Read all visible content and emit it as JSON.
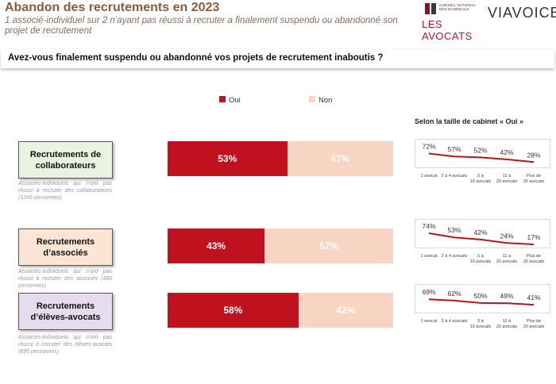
{
  "header": {
    "title": "Abandon des recrutements en 2023",
    "subtitle": "1 associé-individuel sur 2 n’ayant pas réussi à recruter a finalement suspendu ou abandonné son projet de recrutement",
    "logo_cnb_small": "CONSEIL NATIONAL DES BARREAUX",
    "logo_cnb_big": "LES AVOCATS",
    "logo_viavoice": "VIAVOICE"
  },
  "question": "Avez-vous finalement suspendu ou abandonné vos projets de recrutement inaboutis ?",
  "legend": {
    "oui": "Oui",
    "non": "Non"
  },
  "cabinet_title": "Selon la taille de cabinet « Oui »",
  "colors": {
    "oui": "#c0111f",
    "non": "#f8d5c2",
    "trend_line": "#c0111f"
  },
  "rows": [
    {
      "label": "Recrutements de collaborateurs",
      "note": "Associés-individuels qui n’ont pas réussi à recruter des collaborateurs (1245 personnes)",
      "box_color": "#eaf3e0",
      "oui_label": "53%",
      "non_label": "47%",
      "trend_labels": [
        "72%",
        "57%",
        "52%",
        "42%",
        "28%"
      ]
    },
    {
      "label": "Recrutements d’associés",
      "note": "Associés-individuels qui n’ont pas réussi à recruter des associés (480 personnes)",
      "box_color": "#fce5d4",
      "oui_label": "43%",
      "non_label": "57%",
      "trend_labels": [
        "74%",
        "53%",
        "42%",
        "24%",
        "17%"
      ]
    },
    {
      "label": "Recrutements d’élèves-avocats",
      "note": "Associés-individuels qui n’ont pas réussi à recruter des élèves-avocats (895 personnes)",
      "box_color": "#e6dcf0",
      "oui_label": "58%",
      "non_label": "42%",
      "trend_labels": [
        "69%",
        "62%",
        "50%",
        "49%",
        "41%"
      ]
    }
  ],
  "chart_data": [
    {
      "type": "bar",
      "categories": [
        "Recrutements de collaborateurs",
        "Recrutements d’associés",
        "Recrutements d’élèves-avocats"
      ],
      "series": [
        {
          "name": "Oui",
          "values": [
            53,
            43,
            58
          ]
        },
        {
          "name": "Non",
          "values": [
            47,
            57,
            42
          ]
        }
      ],
      "stacked": true,
      "orientation": "horizontal",
      "legend": "top"
    },
    {
      "type": "line",
      "title": "Selon la taille de cabinet « Oui »",
      "categories": [
        "1 avocat",
        "2 à 4 avocats",
        "5 à 10 avocats",
        "11 à 20 avocats",
        "Plus de 20 avocats"
      ],
      "series": [
        {
          "values": [
            72,
            57,
            52,
            42,
            28
          ]
        },
        {
          "values": [
            74,
            53,
            42,
            24,
            17
          ]
        },
        {
          "values": [
            69,
            62,
            50,
            49,
            41
          ]
        }
      ]
    }
  ]
}
